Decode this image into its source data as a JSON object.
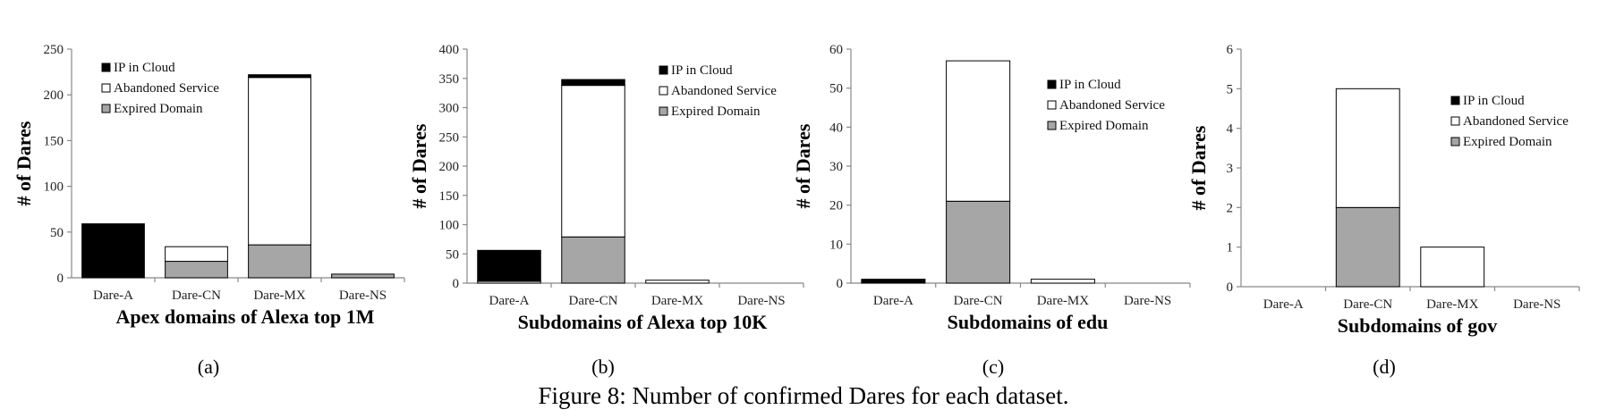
{
  "figure_caption": "Figure 8: Number of confirmed Dares for each dataset.",
  "colors": {
    "ip_in_cloud": "#000000",
    "abandoned_service": "#ffffff",
    "expired_domain": "#a6a6a6"
  },
  "chart_data": [
    {
      "type": "bar",
      "stacked": true,
      "sublabel": "(a)",
      "title": "",
      "xlabel": "Apex domains of Alexa top 1M",
      "ylabel": "# of Dares",
      "ylim": [
        0,
        250
      ],
      "yticks": [
        0,
        50,
        100,
        150,
        200,
        250
      ],
      "categories": [
        "Dare-A",
        "Dare-CN",
        "Dare-MX",
        "Dare-NS"
      ],
      "legend_position": "top-left",
      "series": [
        {
          "name": "Expired Domain",
          "color": "#a6a6a6",
          "values": [
            0,
            18,
            36,
            4
          ]
        },
        {
          "name": "Abandoned Service",
          "color": "#ffffff",
          "values": [
            0,
            16,
            183,
            0
          ]
        },
        {
          "name": "IP in Cloud",
          "color": "#000000",
          "values": [
            59,
            0,
            3,
            0
          ]
        }
      ]
    },
    {
      "type": "bar",
      "stacked": true,
      "sublabel": "(b)",
      "title": "",
      "xlabel": "Subdomains of Alexa top 10K",
      "ylabel": "# of Dares",
      "ylim": [
        0,
        400
      ],
      "yticks": [
        0,
        50,
        100,
        150,
        200,
        250,
        300,
        350,
        400
      ],
      "categories": [
        "Dare-A",
        "Dare-CN",
        "Dare-MX",
        "Dare-NS"
      ],
      "legend_position": "top-right",
      "series": [
        {
          "name": "Expired Domain",
          "color": "#a6a6a6",
          "values": [
            0,
            79,
            0,
            0
          ]
        },
        {
          "name": "Abandoned Service",
          "color": "#ffffff",
          "values": [
            3,
            259,
            5,
            0
          ]
        },
        {
          "name": "IP in Cloud",
          "color": "#000000",
          "values": [
            53,
            10,
            0,
            0
          ]
        }
      ]
    },
    {
      "type": "bar",
      "stacked": true,
      "sublabel": "(c)",
      "title": "",
      "xlabel": "Subdomains of edu",
      "ylabel": "# of Dares",
      "ylim": [
        0,
        60
      ],
      "yticks": [
        0,
        10,
        20,
        30,
        40,
        50,
        60
      ],
      "categories": [
        "Dare-A",
        "Dare-CN",
        "Dare-MX",
        "Dare-NS"
      ],
      "legend_position": "top-right",
      "series": [
        {
          "name": "Expired Domain",
          "color": "#a6a6a6",
          "values": [
            0,
            21,
            0,
            0
          ]
        },
        {
          "name": "Abandoned Service",
          "color": "#ffffff",
          "values": [
            0,
            36,
            1,
            0
          ]
        },
        {
          "name": "IP in Cloud",
          "color": "#000000",
          "values": [
            1,
            0,
            0,
            0
          ]
        }
      ]
    },
    {
      "type": "bar",
      "stacked": true,
      "sublabel": "(d)",
      "title": "",
      "xlabel": "Subdomains of gov",
      "ylabel": "# of Dares",
      "ylim": [
        0,
        6
      ],
      "yticks": [
        0,
        1,
        2,
        3,
        4,
        5,
        6
      ],
      "categories": [
        "Dare-A",
        "Dare-CN",
        "Dare-MX",
        "Dare-NS"
      ],
      "legend_position": "top-right",
      "series": [
        {
          "name": "Expired Domain",
          "color": "#a6a6a6",
          "values": [
            0,
            2,
            0,
            0
          ]
        },
        {
          "name": "Abandoned Service",
          "color": "#ffffff",
          "values": [
            0,
            3,
            1,
            0
          ]
        },
        {
          "name": "IP in Cloud",
          "color": "#000000",
          "values": [
            0,
            0,
            0,
            0
          ]
        }
      ]
    }
  ]
}
